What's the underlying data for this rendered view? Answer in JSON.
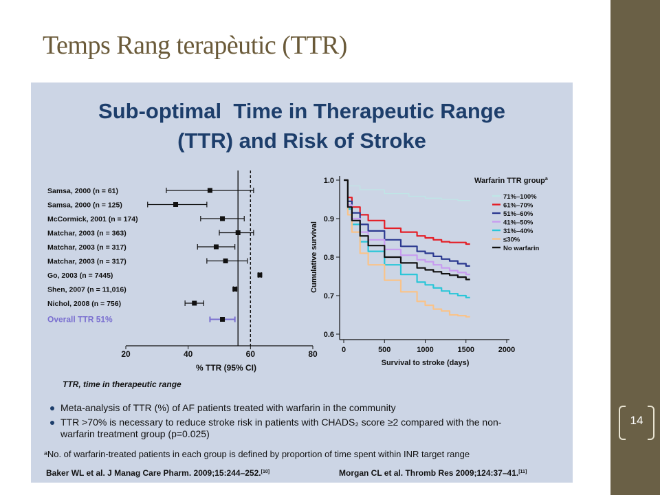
{
  "slide": {
    "title": "Temps Rang terapèutic (TTR)",
    "page_number": "14",
    "colors": {
      "sidebar": "#6a6046",
      "title": "#6a5a39",
      "panel_bg": "#ccd5e5",
      "panel_title": "#1d3e6b"
    }
  },
  "panel": {
    "title_line1": "Sub-optimal  Time in Therapeutic Range",
    "title_line2": "(TTR) and Risk of Stroke",
    "bullets": [
      "Meta-analysis of TTR (%) of AF patients treated with warfarin in the community",
      "TTR >70% is necessary to reduce stroke risk in patients with CHADS₂ score ≥2 compared with the non-",
      "warfarin treatment group (p=0.025)"
    ],
    "footnote": "ᵃNo. of warfarin-treated patients in each group is defined by proportion of time spent within INR target range",
    "ref_left": "Baker WL et al. J Manag Care Pharm. 2009;15:244–252.",
    "ref_left_sup": "[10]",
    "ref_right": "Morgan CL et al. Thromb Res 2009;124:37–41.",
    "ref_right_sup": "[11]"
  },
  "chart_data": [
    {
      "type": "forest",
      "xlabel": "% TTR (95% CI)",
      "caption": "TTR, time in therapeutic range",
      "xlim": [
        20,
        80
      ],
      "xticks": [
        20,
        40,
        60,
        80
      ],
      "reference_lines": [
        56,
        60
      ],
      "studies": [
        {
          "label": "Samsa, 2000 (n = 61)",
          "estimate": 47,
          "ci_low": 33,
          "ci_high": 61
        },
        {
          "label": "Samsa, 2000 (n = 125)",
          "estimate": 36,
          "ci_low": 27,
          "ci_high": 46
        },
        {
          "label": "McCormick, 2001 (n = 174)",
          "estimate": 51,
          "ci_low": 44,
          "ci_high": 58
        },
        {
          "label": "Matchar, 2003 (n = 363)",
          "estimate": 56,
          "ci_low": 50,
          "ci_high": 61
        },
        {
          "label": "Matchar, 2003 (n = 317)",
          "estimate": 49,
          "ci_low": 43,
          "ci_high": 55
        },
        {
          "label": "Matchar, 2003 (n = 317)",
          "estimate": 52,
          "ci_low": 46,
          "ci_high": 59
        },
        {
          "label": "Go, 2003 (n = 7445)",
          "estimate": 63,
          "ci_low": 62.5,
          "ci_high": 63.5
        },
        {
          "label": "Shen, 2007 (n = 11,016)",
          "estimate": 55,
          "ci_low": 54.5,
          "ci_high": 55.5
        },
        {
          "label": "Nichol, 2008 (n = 756)",
          "estimate": 42,
          "ci_low": 39,
          "ci_high": 45
        }
      ],
      "overall": {
        "label": "Overall TTR 51%",
        "estimate": 51,
        "ci_low": 47,
        "ci_high": 55,
        "color": "#7a6fd0"
      }
    },
    {
      "type": "line",
      "xlabel": "Survival to stroke (days)",
      "ylabel": "Cumulative survival",
      "xlim": [
        0,
        2000
      ],
      "ylim": [
        0.6,
        1.0
      ],
      "xticks": [
        0,
        500,
        1000,
        1500,
        2000
      ],
      "yticks": [
        "0.6",
        "0.7",
        "0.8",
        "0.9",
        "1.0"
      ],
      "legend_title": "Warfarin TTR group",
      "legend_title_sup": "a",
      "legend_position": "top-right",
      "series": [
        {
          "name": "71%–100%",
          "color": "#bfe6e6",
          "x": [
            0,
            50,
            200,
            500,
            800,
            1000,
            1200,
            1400,
            1550
          ],
          "y": [
            1.0,
            0.985,
            0.975,
            0.965,
            0.958,
            0.953,
            0.95,
            0.947,
            0.945
          ]
        },
        {
          "name": "61%–70%",
          "color": "#e41e26",
          "x": [
            0,
            50,
            100,
            200,
            300,
            500,
            700,
            900,
            1000,
            1100,
            1200,
            1300,
            1400,
            1500,
            1550
          ],
          "y": [
            1.0,
            0.955,
            0.93,
            0.91,
            0.895,
            0.875,
            0.865,
            0.855,
            0.85,
            0.845,
            0.84,
            0.838,
            0.838,
            0.834,
            0.834
          ]
        },
        {
          "name": "51%–60%",
          "color": "#2b3990",
          "x": [
            0,
            50,
            100,
            200,
            300,
            500,
            700,
            900,
            1000,
            1100,
            1200,
            1300,
            1400,
            1500,
            1550
          ],
          "y": [
            1.0,
            0.945,
            0.915,
            0.885,
            0.868,
            0.845,
            0.828,
            0.815,
            0.81,
            0.802,
            0.795,
            0.79,
            0.783,
            0.777,
            0.777
          ]
        },
        {
          "name": "41%–50%",
          "color": "#c89cf0",
          "x": [
            0,
            50,
            100,
            200,
            300,
            500,
            700,
            900,
            1000,
            1100,
            1200,
            1300,
            1400,
            1500,
            1550
          ],
          "y": [
            1.0,
            0.935,
            0.9,
            0.865,
            0.845,
            0.82,
            0.805,
            0.793,
            0.788,
            0.78,
            0.772,
            0.765,
            0.76,
            0.755,
            0.755
          ]
        },
        {
          "name": "31%–40%",
          "color": "#29c6d8",
          "x": [
            0,
            50,
            100,
            200,
            300,
            500,
            700,
            900,
            1000,
            1100,
            1200,
            1300,
            1400,
            1500,
            1550
          ],
          "y": [
            1.0,
            0.925,
            0.885,
            0.84,
            0.815,
            0.78,
            0.755,
            0.735,
            0.728,
            0.72,
            0.712,
            0.705,
            0.7,
            0.695,
            0.695
          ]
        },
        {
          "name": "≤30%",
          "color": "#f9c38a",
          "x": [
            0,
            50,
            100,
            200,
            300,
            500,
            700,
            900,
            1000,
            1100,
            1200,
            1300,
            1400,
            1500,
            1550
          ],
          "y": [
            1.0,
            0.91,
            0.865,
            0.81,
            0.78,
            0.74,
            0.71,
            0.685,
            0.675,
            0.665,
            0.66,
            0.65,
            0.648,
            0.645,
            0.645
          ]
        },
        {
          "name": "No warfarin",
          "color": "#111111",
          "x": [
            0,
            50,
            100,
            200,
            300,
            500,
            700,
            900,
            1000,
            1100,
            1200,
            1300,
            1400,
            1500,
            1550
          ],
          "y": [
            1.0,
            0.93,
            0.895,
            0.855,
            0.83,
            0.8,
            0.785,
            0.772,
            0.767,
            0.762,
            0.757,
            0.753,
            0.748,
            0.742,
            0.742
          ]
        }
      ]
    }
  ]
}
